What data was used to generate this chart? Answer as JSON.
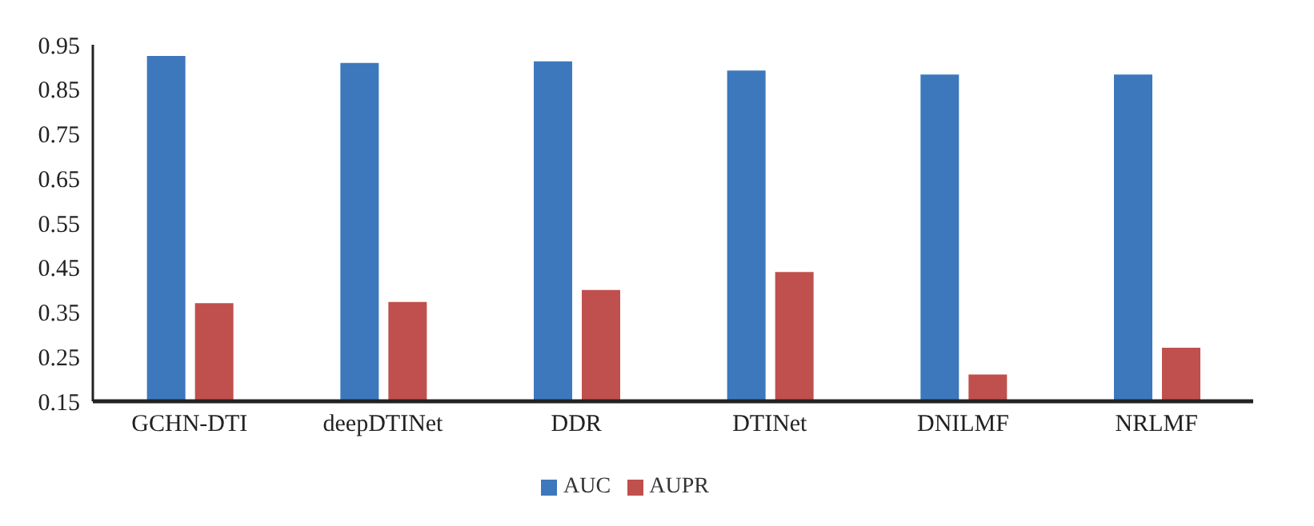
{
  "chart_data": {
    "type": "bar",
    "categories": [
      "GCHN-DTI",
      "deepDTINet",
      "DDR",
      "DTINet",
      "DNILMF",
      "NRLMF"
    ],
    "series": [
      {
        "name": "AUC",
        "color": "#3d78bc",
        "values": [
          0.925,
          0.909,
          0.913,
          0.892,
          0.883,
          0.883
        ]
      },
      {
        "name": "AUPR",
        "color": "#c0504d",
        "values": [
          0.37,
          0.373,
          0.4,
          0.44,
          0.21,
          0.27
        ]
      }
    ],
    "ylim": [
      0.15,
      0.95
    ],
    "yticks": [
      0.15,
      0.25,
      0.35,
      0.45,
      0.55,
      0.65,
      0.75,
      0.85,
      0.95
    ],
    "grid": false,
    "legend": "bottom"
  }
}
